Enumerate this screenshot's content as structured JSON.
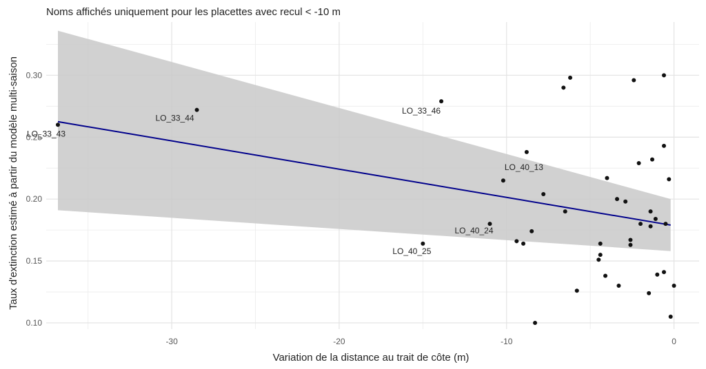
{
  "chart_data": {
    "type": "scatter",
    "title": "Noms affichés uniquement pour les placettes avec recul < -10 m",
    "xlabel": "Variation de la distance au trait de côte (m)",
    "ylabel": "Taux d'extinction estimé à partir du modèle multi-saison",
    "xlim": [
      -37.5,
      1.5
    ],
    "ylim": [
      0.095,
      0.343
    ],
    "x_ticks": [
      -30,
      -20,
      -10,
      0
    ],
    "x_tick_labels": [
      "-30",
      "-20",
      "-10",
      "0"
    ],
    "y_ticks": [
      0.1,
      0.15,
      0.2,
      0.25,
      0.3
    ],
    "y_tick_labels": [
      "0.10",
      "0.15",
      "0.20",
      "0.25",
      "0.30"
    ],
    "grid": true,
    "colors": {
      "point": "#111111",
      "fit_line": "#00008b",
      "ribbon": "#c9c9c9",
      "grid": "#ebebeb",
      "text": "#222222",
      "tick_text": "#555555"
    },
    "fit": {
      "x": [
        -36.8,
        -0.2
      ],
      "y": [
        0.2625,
        0.179
      ],
      "ci_lower": [
        0.191,
        0.158
      ],
      "ci_upper": [
        0.336,
        0.2
      ]
    },
    "points": [
      {
        "x": -36.8,
        "y": 0.26,
        "label": "LO_33_43"
      },
      {
        "x": -28.5,
        "y": 0.272,
        "label": "LO_33_44"
      },
      {
        "x": -13.9,
        "y": 0.279,
        "label": "LO_33_46"
      },
      {
        "x": -15.0,
        "y": 0.164,
        "label": "LO_40_25"
      },
      {
        "x": -11.0,
        "y": 0.18,
        "label": "LO_40_24"
      },
      {
        "x": -10.2,
        "y": 0.215,
        "label": "LO_40_13"
      },
      {
        "x": -9.4,
        "y": 0.166,
        "label": ""
      },
      {
        "x": -9.0,
        "y": 0.164,
        "label": ""
      },
      {
        "x": -8.8,
        "y": 0.238,
        "label": ""
      },
      {
        "x": -8.5,
        "y": 0.174,
        "label": ""
      },
      {
        "x": -8.3,
        "y": 0.1,
        "label": ""
      },
      {
        "x": -7.8,
        "y": 0.204,
        "label": ""
      },
      {
        "x": -6.6,
        "y": 0.29,
        "label": ""
      },
      {
        "x": -6.5,
        "y": 0.19,
        "label": ""
      },
      {
        "x": -6.2,
        "y": 0.298,
        "label": ""
      },
      {
        "x": -5.8,
        "y": 0.126,
        "label": ""
      },
      {
        "x": -4.5,
        "y": 0.151,
        "label": ""
      },
      {
        "x": -4.4,
        "y": 0.155,
        "label": ""
      },
      {
        "x": -4.4,
        "y": 0.164,
        "label": ""
      },
      {
        "x": -4.1,
        "y": 0.138,
        "label": ""
      },
      {
        "x": -4.0,
        "y": 0.217,
        "label": ""
      },
      {
        "x": -3.4,
        "y": 0.2,
        "label": ""
      },
      {
        "x": -3.3,
        "y": 0.13,
        "label": ""
      },
      {
        "x": -2.9,
        "y": 0.198,
        "label": ""
      },
      {
        "x": -2.6,
        "y": 0.163,
        "label": ""
      },
      {
        "x": -2.6,
        "y": 0.167,
        "label": ""
      },
      {
        "x": -2.4,
        "y": 0.296,
        "label": ""
      },
      {
        "x": -2.1,
        "y": 0.229,
        "label": ""
      },
      {
        "x": -2.0,
        "y": 0.18,
        "label": ""
      },
      {
        "x": -1.5,
        "y": 0.124,
        "label": ""
      },
      {
        "x": -1.4,
        "y": 0.178,
        "label": ""
      },
      {
        "x": -1.4,
        "y": 0.19,
        "label": ""
      },
      {
        "x": -1.3,
        "y": 0.232,
        "label": ""
      },
      {
        "x": -1.1,
        "y": 0.184,
        "label": ""
      },
      {
        "x": -1.0,
        "y": 0.139,
        "label": ""
      },
      {
        "x": -0.6,
        "y": 0.141,
        "label": ""
      },
      {
        "x": -0.6,
        "y": 0.243,
        "label": ""
      },
      {
        "x": -0.6,
        "y": 0.3,
        "label": ""
      },
      {
        "x": -0.5,
        "y": 0.18,
        "label": ""
      },
      {
        "x": -0.3,
        "y": 0.216,
        "label": ""
      },
      {
        "x": -0.2,
        "y": 0.105,
        "label": ""
      },
      {
        "x": 0.0,
        "y": 0.13,
        "label": ""
      }
    ]
  }
}
